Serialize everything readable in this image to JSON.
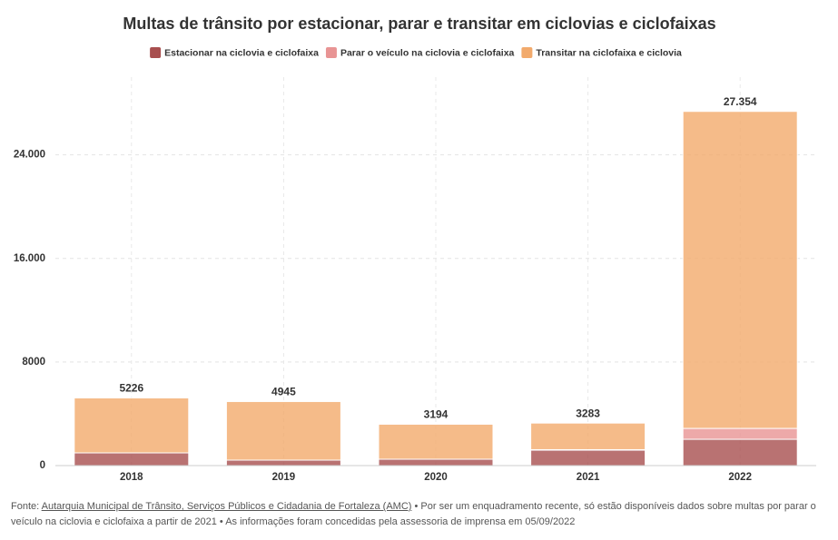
{
  "chart_data": {
    "type": "stacked-bar",
    "title": "Multas de trânsito por estacionar, parar e transitar em ciclovias e ciclofaixas",
    "categories": [
      "2018",
      "2019",
      "2020",
      "2021",
      "2022"
    ],
    "series": [
      {
        "name": "Estacionar na ciclovia e ciclofaixa",
        "color": "#a84f4f",
        "values": [
          980,
          420,
          490,
          1190,
          2030
        ]
      },
      {
        "name": "Parar o veículo na ciclovia e ciclofaixa",
        "color": "#e89494",
        "values": [
          0,
          0,
          0,
          40,
          840
        ]
      },
      {
        "name": "Transitar na ciclofaixa e ciclovia",
        "color": "#f2aa6c",
        "values": [
          4246,
          4525,
          2704,
          2053,
          24484
        ]
      }
    ],
    "totals": {
      "values": [
        5226,
        4945,
        3194,
        3283,
        27354
      ],
      "value_labels": [
        "5226",
        "4945",
        "3194",
        "3283",
        "27.354"
      ]
    },
    "ylim": [
      0,
      30000
    ],
    "yticks": [
      0,
      8000,
      {
        "value": 16000,
        "label": "16.000"
      },
      {
        "value": 24000,
        "label": "24.000"
      }
    ],
    "grid": true
  },
  "footer": {
    "prefix": "Fonte:",
    "link": "Autarquia Municipal de Trânsito, Serviços Públicos e Cidadania de Fortaleza (AMC)",
    "note": "• Por ser um enquadramento recente, só estão disponíveis dados sobre multas por parar o veículo na ciclovia e ciclofaixa a partir de 2021 • As informações foram concedidas pela assessoria de imprensa em 05/09/2022"
  }
}
